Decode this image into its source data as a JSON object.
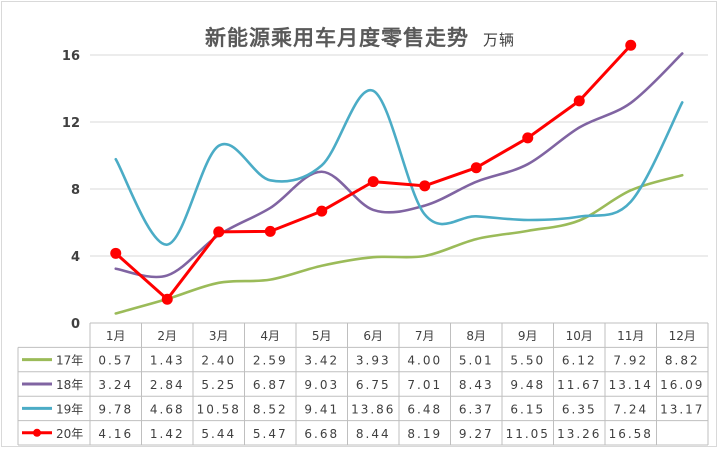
{
  "chart_data": {
    "type": "line",
    "title": "新能源乘用车月度零售走势",
    "unit": "万辆",
    "categories": [
      "1月",
      "2月",
      "3月",
      "4月",
      "5月",
      "6月",
      "7月",
      "8月",
      "9月",
      "10月",
      "11月",
      "12月"
    ],
    "y_ticks": [
      "0",
      "4",
      "8",
      "12",
      "16"
    ],
    "ylim": [
      0,
      16
    ],
    "grid": true,
    "legend_placement": "table-left",
    "series": [
      {
        "name": "17年",
        "color": "#9bbb59",
        "smooth": true,
        "markers": false,
        "values": [
          0.57,
          1.43,
          2.4,
          2.59,
          3.42,
          3.93,
          4.0,
          5.01,
          5.5,
          6.12,
          7.92,
          8.82
        ],
        "labels": [
          "0.57",
          "1.43",
          "2.40",
          "2.59",
          "3.42",
          "3.93",
          "4.00",
          "5.01",
          "5.50",
          "6.12",
          "7.92",
          "8.82"
        ]
      },
      {
        "name": "18年",
        "color": "#8064a2",
        "smooth": true,
        "markers": false,
        "values": [
          3.24,
          2.84,
          5.25,
          6.87,
          9.03,
          6.75,
          7.01,
          8.43,
          9.48,
          11.67,
          13.14,
          16.09
        ],
        "labels": [
          "3.24",
          "2.84",
          "5.25",
          "6.87",
          "9.03",
          "6.75",
          "7.01",
          "8.43",
          "9.48",
          "11.67",
          "13.14",
          "16.09"
        ]
      },
      {
        "name": "19年",
        "color": "#4bacc6",
        "smooth": true,
        "markers": false,
        "values": [
          9.78,
          4.68,
          10.58,
          8.52,
          9.41,
          13.86,
          6.48,
          6.37,
          6.15,
          6.35,
          7.24,
          13.17
        ],
        "labels": [
          "9.78",
          "4.68",
          "10.58",
          "8.52",
          "9.41",
          "13.86",
          "6.48",
          "6.37",
          "6.15",
          "6.35",
          "7.24",
          "13.17"
        ]
      },
      {
        "name": "20年",
        "color": "#ff0000",
        "smooth": false,
        "markers": true,
        "values": [
          4.16,
          1.42,
          5.44,
          5.47,
          6.68,
          8.44,
          8.19,
          9.27,
          11.05,
          13.26,
          16.58,
          null
        ],
        "labels": [
          "4.16",
          "1.42",
          "5.44",
          "5.47",
          "6.68",
          "8.44",
          "8.19",
          "9.27",
          "11.05",
          "13.26",
          "16.58",
          ""
        ]
      }
    ]
  }
}
